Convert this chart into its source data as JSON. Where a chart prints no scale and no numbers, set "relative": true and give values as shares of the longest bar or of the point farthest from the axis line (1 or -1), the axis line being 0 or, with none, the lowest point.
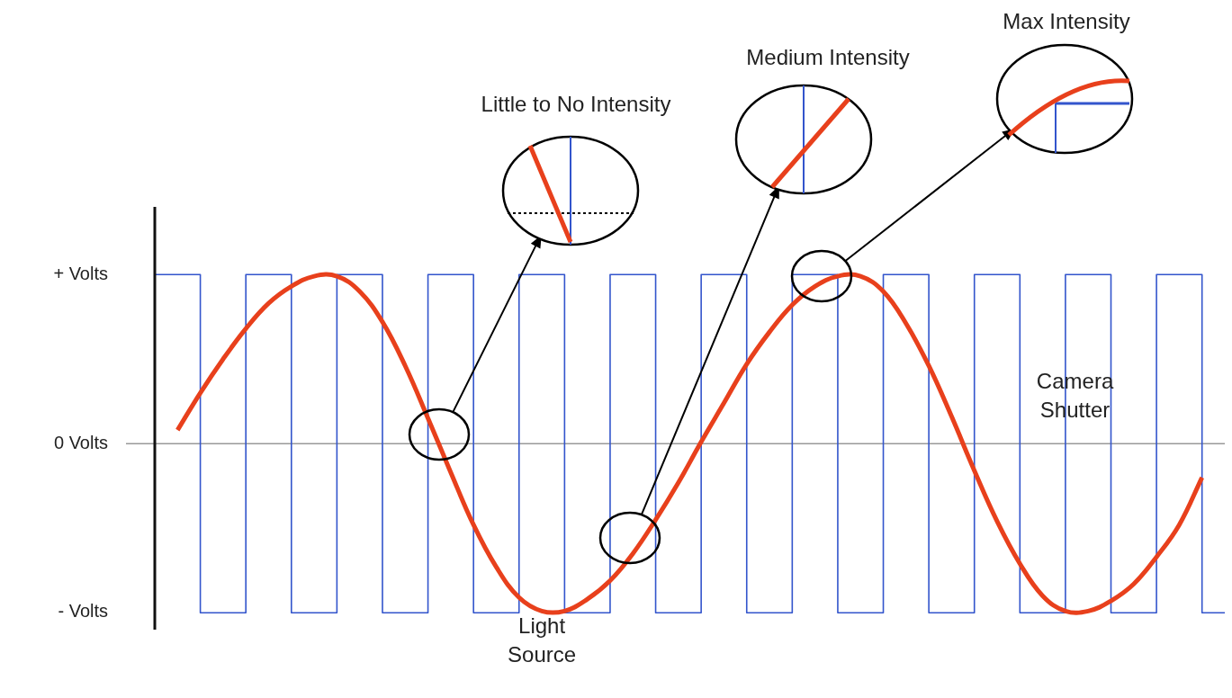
{
  "chart_data": {
    "type": "line",
    "categories": [
      null,
      null,
      null,
      null,
      null,
      null,
      null,
      null,
      null,
      null,
      null,
      null,
      null,
      null,
      null,
      null,
      null,
      null,
      null,
      null,
      null,
      null,
      null,
      null,
      null,
      null,
      null,
      null,
      null,
      null,
      null,
      null,
      null,
      null,
      null,
      null,
      null,
      null,
      null,
      null,
      null,
      null,
      null,
      null,
      null,
      null,
      null,
      null
    ],
    "series": [
      {
        "name": "Camera Shutter",
        "type": "step",
        "color": "#3355cc",
        "values": [
          -1,
          1,
          1,
          -1,
          -1,
          1,
          1,
          -1,
          -1,
          1,
          1,
          -1,
          -1,
          1,
          1,
          -1,
          -1,
          1,
          1,
          -1,
          -1,
          1,
          1,
          -1,
          -1,
          1,
          1,
          -1,
          -1,
          1,
          1,
          -1,
          -1,
          1,
          1,
          -1,
          -1,
          1,
          1,
          -1,
          -1,
          1,
          1,
          -1,
          -1,
          1,
          1,
          -1
        ]
      },
      {
        "name": "Light Source",
        "type": "line",
        "color": "#e8401c",
        "values": [
          null,
          0.08,
          0.3,
          0.5,
          0.68,
          0.83,
          0.93,
          0.99,
          0.99,
          0.9,
          0.72,
          0.46,
          0.15,
          -0.17,
          -0.48,
          -0.73,
          -0.91,
          -0.99,
          -0.99,
          -0.92,
          -0.81,
          -0.65,
          -0.45,
          -0.23,
          0.01,
          0.24,
          0.47,
          0.66,
          0.82,
          0.93,
          0.99,
          0.99,
          0.9,
          0.71,
          0.46,
          0.16,
          -0.16,
          -0.46,
          -0.71,
          -0.9,
          -0.99,
          -0.99,
          -0.93,
          -0.83,
          -0.67,
          -0.48,
          -0.2,
          null
        ]
      }
    ],
    "relative": true,
    "ref_lines": [
      {
        "axis": "y",
        "value": 0,
        "color": "#999999"
      }
    ],
    "annotations": [
      "Little to No Intensity",
      "Medium Intensity",
      "Max Intensity",
      "+ Volts",
      "0 Volts",
      "- Volts"
    ],
    "legend": false
  }
}
